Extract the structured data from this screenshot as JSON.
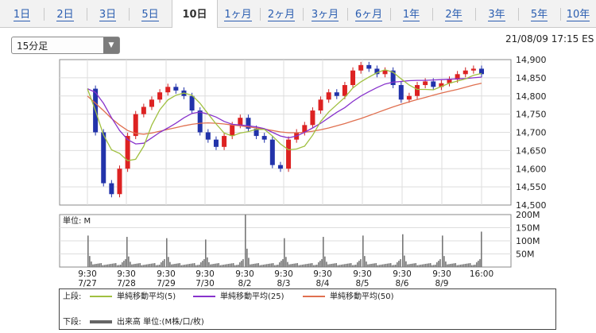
{
  "tabs": [
    {
      "label": "1日"
    },
    {
      "label": "2日"
    },
    {
      "label": "3日"
    },
    {
      "label": "5日"
    },
    {
      "label": "10日",
      "active": true
    },
    {
      "label": "1ヶ月"
    },
    {
      "label": "2ヶ月"
    },
    {
      "label": "3ヶ月"
    },
    {
      "label": "6ヶ月"
    },
    {
      "label": "1年"
    },
    {
      "label": "2年"
    },
    {
      "label": "3年"
    },
    {
      "label": "5年"
    },
    {
      "label": "10年"
    }
  ],
  "interval_select": {
    "value": "15分足",
    "icon": "chevron-down-icon"
  },
  "timestamp": "21/08/09 17:15 ES",
  "chart_data": {
    "type": "line",
    "price_panel": {
      "y_ticks": [
        "14,900",
        "14,850",
        "14,800",
        "14,750",
        "14,700",
        "14,650",
        "14,600",
        "14,550",
        "14,500"
      ],
      "ylim": [
        14500,
        14900
      ],
      "x_tick_labels": [
        {
          "time": "9:30",
          "date": "7/27"
        },
        {
          "time": "9:30",
          "date": "7/28"
        },
        {
          "time": "9:30",
          "date": "7/29"
        },
        {
          "time": "9:30",
          "date": "7/30"
        },
        {
          "time": "9:30",
          "date": "8/2"
        },
        {
          "time": "9:30",
          "date": "8/3"
        },
        {
          "time": "9:30",
          "date": "8/4"
        },
        {
          "time": "9:30",
          "date": "8/5"
        },
        {
          "time": "9:30",
          "date": "8/6"
        },
        {
          "time": "9:30",
          "date": "8/9"
        },
        {
          "time": "16:00",
          "date": ""
        }
      ],
      "close": [
        14820,
        14700,
        14560,
        14530,
        14600,
        14690,
        14750,
        14770,
        14790,
        14810,
        14825,
        14815,
        14800,
        14760,
        14700,
        14680,
        14660,
        14690,
        14720,
        14740,
        14710,
        14690,
        14680,
        14610,
        14600,
        14680,
        14700,
        14720,
        14760,
        14790,
        14810,
        14800,
        14830,
        14870,
        14885,
        14875,
        14860,
        14870,
        14830,
        14790,
        14800,
        14830,
        14840,
        14825,
        14835,
        14845,
        14860,
        14870,
        14875,
        14860
      ],
      "sma5": [
        14820,
        14760,
        14693,
        14652,
        14642,
        14622,
        14626,
        14662,
        14720,
        14762,
        14789,
        14802,
        14808,
        14802,
        14780,
        14751,
        14723,
        14698,
        14690,
        14698,
        14702,
        14708,
        14708,
        14690,
        14668,
        14652,
        14654,
        14662,
        14692,
        14730,
        14756,
        14776,
        14796,
        14822,
        14839,
        14852,
        14864,
        14872,
        14865,
        14847,
        14830,
        14818,
        14818,
        14817,
        14826,
        14835,
        14841,
        14847,
        14857,
        14862
      ],
      "sma25": [
        14820,
        14810,
        14780,
        14740,
        14705,
        14680,
        14668,
        14670,
        14685,
        14700,
        14712,
        14725,
        14740,
        14752,
        14756,
        14750,
        14742,
        14730,
        14722,
        14720,
        14718,
        14715,
        14710,
        14700,
        14690,
        14685,
        14690,
        14700,
        14712,
        14725,
        14740,
        14755,
        14768,
        14785,
        14800,
        14812,
        14823,
        14833,
        14838,
        14840,
        14842,
        14843,
        14843,
        14844,
        14845,
        14846,
        14847,
        14848,
        14850,
        14852
      ],
      "sma50": [
        14800,
        14780,
        14760,
        14738,
        14720,
        14705,
        14697,
        14695,
        14698,
        14703,
        14708,
        14713,
        14718,
        14722,
        14725,
        14726,
        14725,
        14723,
        14720,
        14718,
        14715,
        14712,
        14709,
        14705,
        14701,
        14699,
        14699,
        14700,
        14703,
        14707,
        14712,
        14718,
        14724,
        14731,
        14738,
        14746,
        14754,
        14762,
        14770,
        14777,
        14784,
        14790,
        14796,
        14802,
        14808,
        14813,
        14818,
        14824,
        14830,
        14835
      ]
    },
    "volume_panel": {
      "label": "単位: M",
      "y_ticks": [
        "200M",
        "150M",
        "100M",
        "50M"
      ],
      "ylim": [
        0,
        200
      ],
      "open_spikes": [
        120,
        115,
        110,
        105,
        200,
        110,
        115,
        120,
        125,
        120
      ],
      "close_spikes": [
        135
      ]
    },
    "legend": {
      "upper_label": "上段:",
      "lower_label": "下段:",
      "series": [
        {
          "name": "単純移動平均(5)",
          "color": "#a0c040"
        },
        {
          "name": "単純移動平均(25)",
          "color": "#8833cc"
        },
        {
          "name": "単純移動平均(50)",
          "color": "#e07050"
        }
      ],
      "volume": {
        "name": "出来高 単位:(M株/口/枚)",
        "color": "#666666"
      }
    }
  }
}
